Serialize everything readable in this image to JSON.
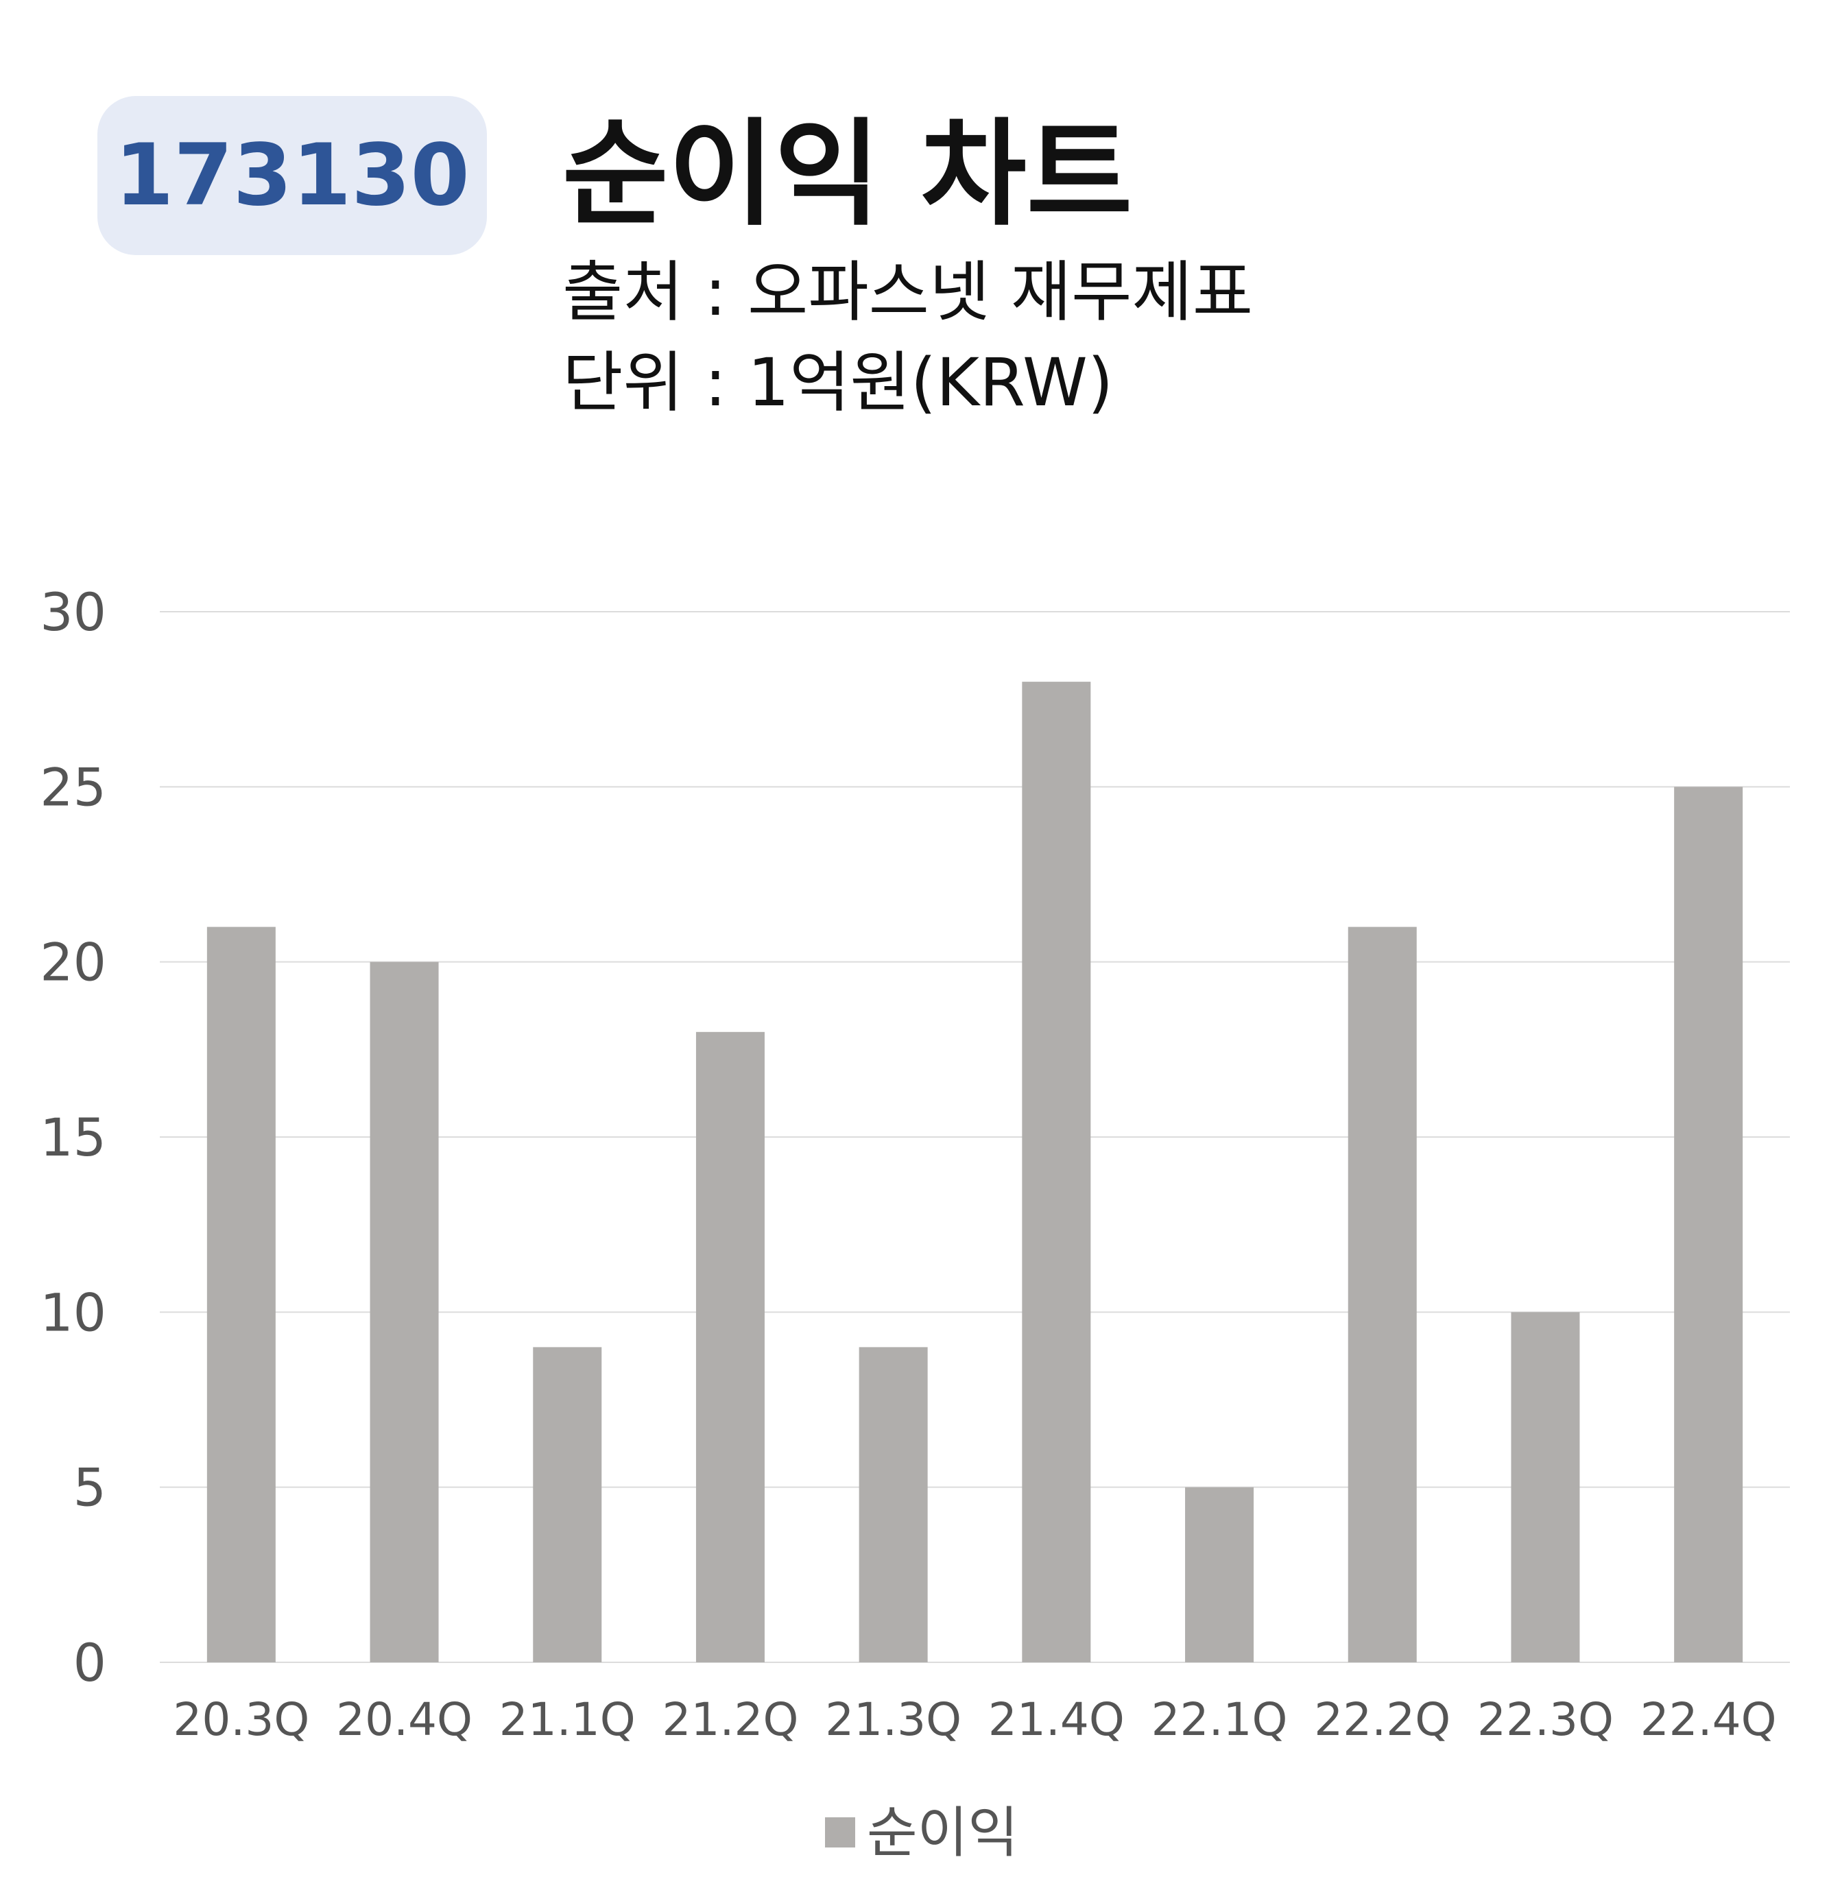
{
  "header": {
    "code": "173130",
    "title": "순이익 차트",
    "source": "출처 : 오파스넷 재무제표",
    "unit": "단위 : 1억원(KRW)"
  },
  "chart_data": {
    "type": "bar",
    "categories": [
      "20.3Q",
      "20.4Q",
      "21.1Q",
      "21.2Q",
      "21.3Q",
      "21.4Q",
      "22.1Q",
      "22.2Q",
      "22.3Q",
      "22.4Q"
    ],
    "series": [
      {
        "name": "순이익",
        "values": [
          21,
          20,
          9,
          18,
          9,
          28,
          5,
          21,
          10,
          25
        ],
        "color": "#b0aeac"
      }
    ],
    "yticks": [
      0,
      5,
      10,
      15,
      20,
      25,
      30
    ],
    "ylim": [
      0,
      30
    ],
    "grid": true,
    "legend": "bottom-center",
    "colors": {
      "axis_text": "#555555",
      "grid": "#dcdcdc"
    }
  }
}
